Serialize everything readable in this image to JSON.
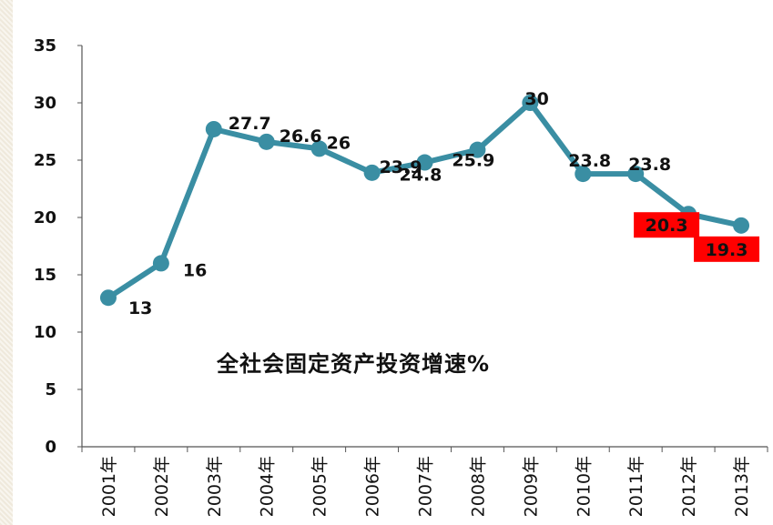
{
  "chart_data": {
    "type": "line",
    "title": "全社会固定资产投资增速%",
    "categories": [
      "2001年",
      "2002年",
      "2003年",
      "2004年",
      "2005年",
      "2006年",
      "2007年",
      "2008年",
      "2009年",
      "2010年",
      "2011年",
      "2012年",
      "2013年"
    ],
    "series": [
      {
        "values": [
          13,
          16,
          27.7,
          26.6,
          26,
          23.9,
          24.8,
          25.9,
          30,
          23.8,
          23.8,
          20.3,
          19.3
        ],
        "data_labels": [
          "13",
          "16",
          "27.7",
          "26.6",
          "26",
          "23.9",
          "24.8",
          "25.9",
          "30",
          "23.8",
          "23.8",
          "20.3",
          "19.3"
        ],
        "color": "#3a8ea3"
      }
    ],
    "highlighted_labels": [
      "20.3",
      "19.3"
    ],
    "highlight_color": "#ff0000",
    "yticks": [
      "0",
      "5",
      "10",
      "15",
      "20",
      "25",
      "30",
      "35"
    ],
    "ylim": [
      0,
      35
    ],
    "grid": false,
    "legend": "none"
  }
}
